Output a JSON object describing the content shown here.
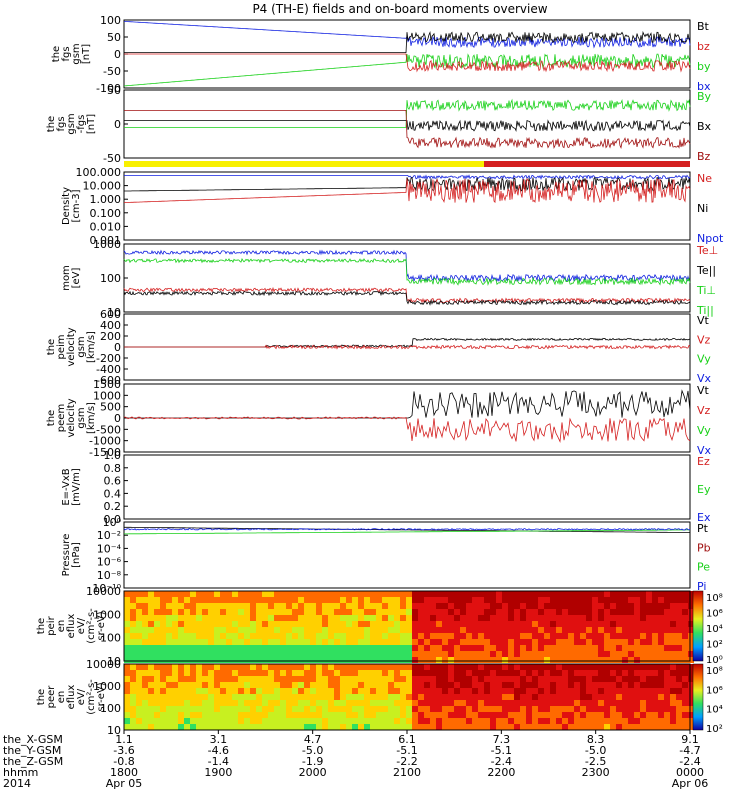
{
  "title": "P4 (TH-E) fields and on-board moments overview",
  "colors": {
    "black": "#000000",
    "red": "#d42020",
    "green": "#18d018",
    "blue": "#1020e0",
    "darkred": "#a01010",
    "yellow": "#f8f000"
  },
  "chart_data": [
    {
      "type": "line",
      "panel": 1,
      "ylabel": [
        "the",
        "fgs",
        "gsm",
        "[nT]"
      ],
      "ylim": [
        -100,
        100
      ],
      "yticks": [
        "100",
        "50",
        "0",
        "-50",
        "-100"
      ],
      "legend": [
        {
          "name": "Bt",
          "color": "black"
        },
        {
          "name": "bz",
          "color": "red"
        },
        {
          "name": "by",
          "color": "green"
        },
        {
          "name": "bx",
          "color": "blue"
        }
      ]
    },
    {
      "type": "line",
      "panel": 2,
      "ylabel": [
        "the",
        "fgs",
        "gsm",
        "-fgs",
        "[nT]"
      ],
      "ylim": [
        -75,
        75
      ],
      "yticks": [
        "50",
        "0",
        "-50"
      ],
      "legend": [
        {
          "name": "By",
          "color": "green"
        },
        {
          "name": "Bx",
          "color": "black"
        },
        {
          "name": "Bz",
          "color": "darkred"
        }
      ]
    },
    {
      "type": "line",
      "panel": 3,
      "scale": "log",
      "ylabel": [
        "Density",
        "[cm-3]"
      ],
      "yticks": [
        "100.000",
        "10.000",
        "1.000",
        "0.100",
        "0.010",
        "0.001"
      ],
      "legend": [
        {
          "name": "Ne",
          "color": "red"
        },
        {
          "name": "Ni",
          "color": "black"
        },
        {
          "name": "Npot",
          "color": "blue"
        }
      ]
    },
    {
      "type": "line",
      "panel": 4,
      "scale": "log",
      "ylabel": [
        "mom",
        "[eV]"
      ],
      "yticks": [
        "1000",
        "100",
        "10"
      ],
      "legend": [
        {
          "name": "Te⊥",
          "color": "red"
        },
        {
          "name": "Te||",
          "color": "black"
        },
        {
          "name": "Ti⊥",
          "color": "green"
        },
        {
          "name": "Ti||",
          "color": "green"
        }
      ]
    },
    {
      "type": "line",
      "panel": 5,
      "ylabel": [
        "the",
        "peim",
        "velocity",
        "gsm",
        "[km/s]"
      ],
      "ylim": [
        -600,
        600
      ],
      "yticks": [
        "600",
        "400",
        "200",
        "0",
        "-200",
        "-400",
        "-600"
      ],
      "legend": [
        {
          "name": "Vt",
          "color": "black"
        },
        {
          "name": "Vz",
          "color": "red"
        },
        {
          "name": "Vy",
          "color": "green"
        },
        {
          "name": "Vx",
          "color": "blue"
        }
      ]
    },
    {
      "type": "line",
      "panel": 6,
      "ylabel": [
        "the",
        "peem",
        "velocity",
        "gsm",
        "[km/s]"
      ],
      "ylim": [
        -1500,
        1500
      ],
      "yticks": [
        "1500",
        "1000",
        "500",
        "0",
        "-500",
        "-1000",
        "-1500"
      ],
      "legend": [
        {
          "name": "Vt",
          "color": "black"
        },
        {
          "name": "Vz",
          "color": "red"
        },
        {
          "name": "Vy",
          "color": "green"
        },
        {
          "name": "Vx",
          "color": "blue"
        }
      ]
    },
    {
      "type": "line",
      "panel": 7,
      "ylabel": [
        "E=-VxB",
        "[mV/m]"
      ],
      "ylim": [
        0,
        1
      ],
      "yticks": [
        "1.0",
        "0.8",
        "0.6",
        "0.4",
        "0.2",
        "0.0"
      ],
      "legend": [
        {
          "name": "Ez",
          "color": "red"
        },
        {
          "name": "Ey",
          "color": "green"
        },
        {
          "name": "Ex",
          "color": "blue"
        }
      ]
    },
    {
      "type": "line",
      "panel": 8,
      "scale": "log",
      "ylabel": [
        "Pressure",
        "[nPa]"
      ],
      "yticks": [
        "10⁰",
        "10⁻²",
        "10⁻⁴",
        "10⁻⁶",
        "10⁻⁸",
        "10⁻¹⁰"
      ],
      "legend": [
        {
          "name": "Pt",
          "color": "black"
        },
        {
          "name": "Pb",
          "color": "darkred"
        },
        {
          "name": "Pe",
          "color": "green"
        },
        {
          "name": "Pi",
          "color": "blue"
        }
      ]
    },
    {
      "type": "heatmap",
      "panel": 9,
      "scale": "log",
      "ylabel": [
        "the",
        "peir",
        "en",
        "eflux",
        "eV/",
        "(cm²-s-",
        "sr-eV)"
      ],
      "yticks": [
        "10000",
        "1000",
        "100",
        "10"
      ],
      "colorbar_ticks": [
        "10⁸",
        "10⁶",
        "10⁴",
        "10²",
        "10⁰"
      ]
    },
    {
      "type": "heatmap",
      "panel": 10,
      "scale": "log",
      "ylabel": [
        "the",
        "peer",
        "en",
        "eflux",
        "eV/",
        "(cm²-s-",
        "sr-eV)"
      ],
      "yticks": [
        "10000",
        "1000",
        "100",
        "10"
      ],
      "colorbar_ticks": [
        "10⁸",
        "10⁶",
        "10⁴",
        "10²"
      ]
    }
  ],
  "x_axis": {
    "row_labels": [
      "the_X-GSM",
      "the_Y-GSM",
      "the_Z-GSM",
      "hhmm",
      "2014"
    ],
    "ticks": [
      {
        "x": "1.1",
        "y": "-3.6",
        "z": "-0.8",
        "hhmm": "1800",
        "date": "Apr 05"
      },
      {
        "x": "3.1",
        "y": "-4.6",
        "z": "-1.4",
        "hhmm": "1900",
        "date": ""
      },
      {
        "x": "4.7",
        "y": "-5.0",
        "z": "-1.9",
        "hhmm": "2000",
        "date": ""
      },
      {
        "x": "6.1",
        "y": "-5.1",
        "z": "-2.2",
        "hhmm": "2100",
        "date": ""
      },
      {
        "x": "7.3",
        "y": "-5.1",
        "z": "-2.4",
        "hhmm": "2200",
        "date": ""
      },
      {
        "x": "8.3",
        "y": "-5.0",
        "z": "-2.5",
        "hhmm": "2300",
        "date": ""
      },
      {
        "x": "9.1",
        "y": "-4.7",
        "z": "-2.4",
        "hhmm": "0000",
        "date": "Apr 06"
      }
    ]
  }
}
